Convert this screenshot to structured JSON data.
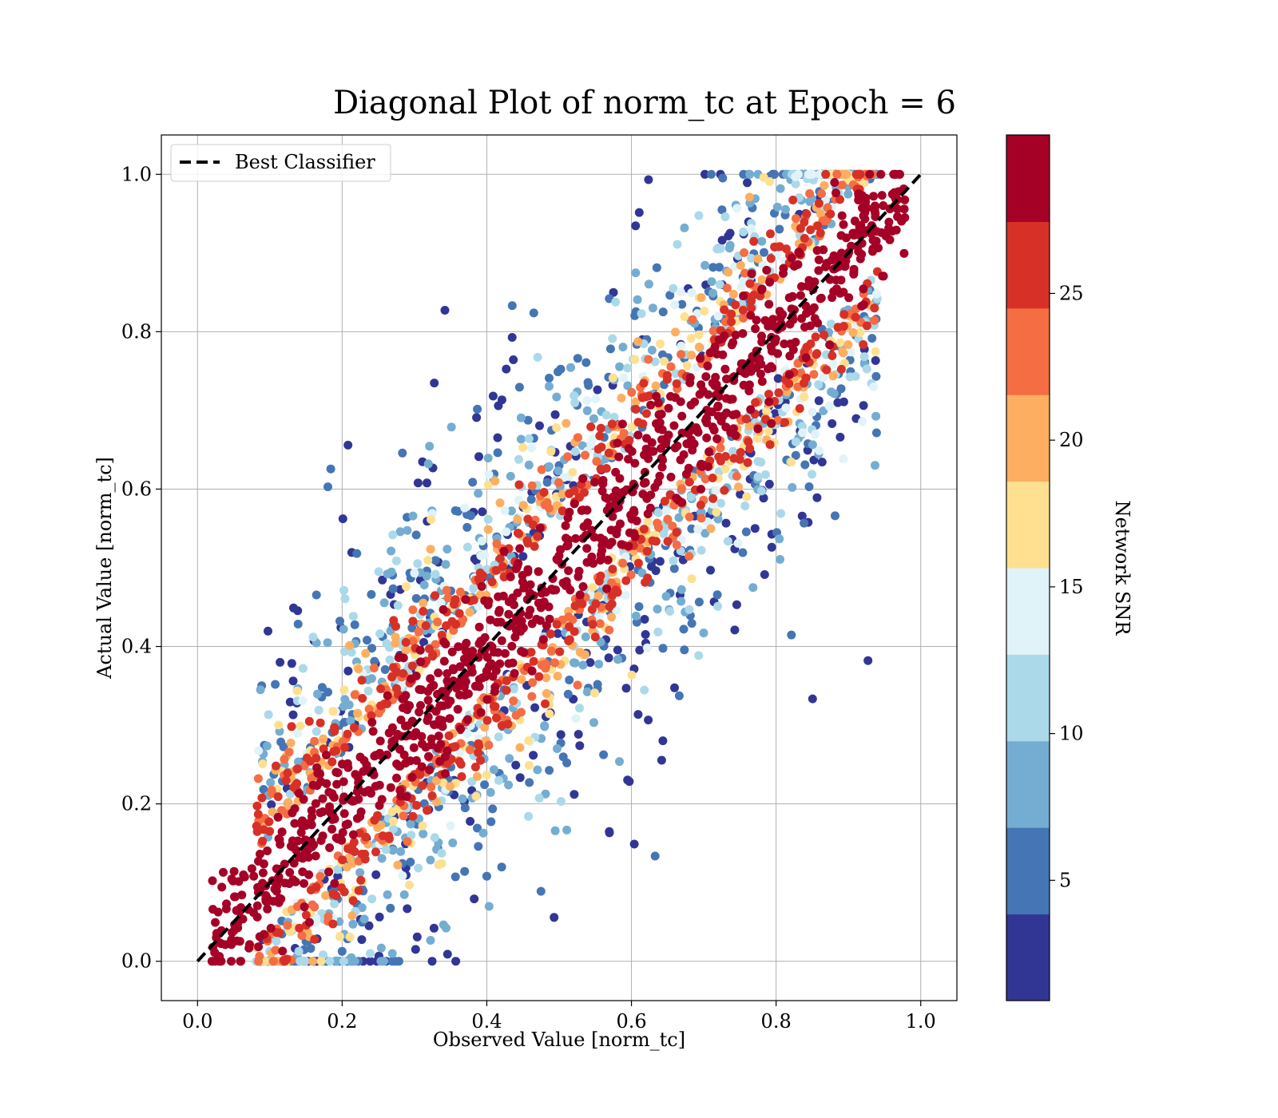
{
  "chart_data": {
    "type": "scatter",
    "title": "Diagonal Plot of norm_tc at Epoch = 6",
    "xlabel": "Observed Value [norm_tc]",
    "ylabel": "Actual Value [norm_tc]",
    "xlim": [
      -0.05,
      1.05
    ],
    "ylim": [
      -0.05,
      1.05
    ],
    "x_ticks": [
      "0.0",
      "0.2",
      "0.4",
      "0.6",
      "0.8",
      "1.0"
    ],
    "y_ticks": [
      "0.0",
      "0.2",
      "0.4",
      "0.6",
      "0.8",
      "1.0"
    ],
    "grid": true,
    "legend": {
      "placement": "upper-left",
      "entries": [
        {
          "label": "Best Classifier",
          "style": "black dashed line"
        }
      ]
    },
    "reference_line": {
      "name": "Best Classifier",
      "x": [
        0.0,
        1.0
      ],
      "y": [
        0.0,
        1.0
      ],
      "color": "#000000",
      "dash": true
    },
    "colorbar": {
      "label": "Network SNR",
      "range": [
        0.9,
        30.4
      ],
      "ticks": [
        "5",
        "10",
        "15",
        "20",
        "25"
      ],
      "tick_values": [
        5,
        10,
        15,
        20,
        25
      ],
      "bins": 10,
      "colors": [
        "#313695",
        "#4575b4",
        "#74add1",
        "#abd9e9",
        "#e0f3f8",
        "#fee090",
        "#fdae61",
        "#f46d43",
        "#d73027",
        "#a50026"
      ]
    },
    "series_description": "Dense point cloud; points near diagonal have high SNR (dark red), points far from diagonal have low SNR (blue); both values clipped to [0, 1].",
    "band_width_by_snr": [
      0.55,
      0.45,
      0.36,
      0.3,
      0.24,
      0.2,
      0.17,
      0.14,
      0.12,
      0.1
    ]
  }
}
